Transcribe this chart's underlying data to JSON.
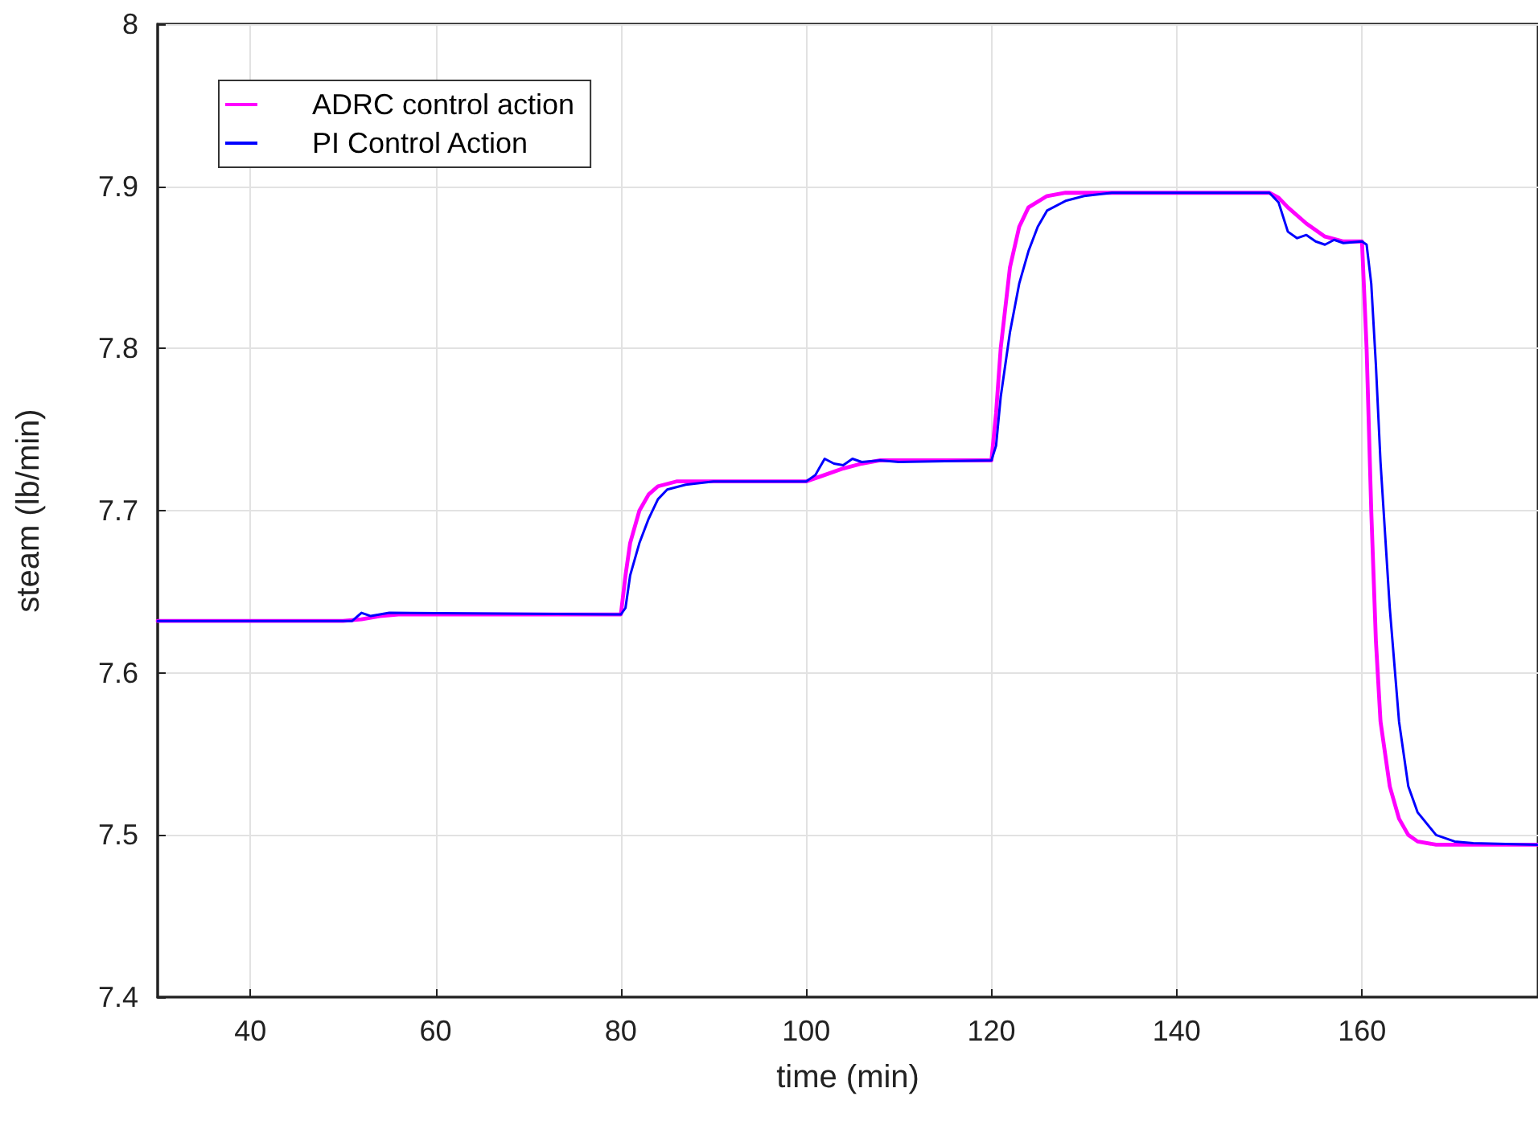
{
  "chart_data": {
    "type": "line",
    "xlabel": "time (min)",
    "ylabel": "steam (lb/min)",
    "xlim": [
      30,
      179
    ],
    "xticks": [
      40,
      60,
      80,
      100,
      120,
      140,
      160
    ],
    "ylim": [
      7.4,
      8
    ],
    "yticks": [
      7.4,
      7.5,
      7.6,
      7.7,
      7.8,
      7.9,
      {
        "value": 8,
        "label": "8"
      }
    ],
    "grid": true,
    "legend": "top left",
    "line_style": "solid",
    "marker": "none",
    "series": [
      {
        "name": "ADRC control action",
        "color": "#ff00ff",
        "x": [
          30,
          50,
          52,
          54,
          56,
          80,
          80.5,
          81,
          82,
          83,
          84,
          86,
          100,
          102,
          104,
          106,
          108,
          120,
          120.5,
          121,
          122,
          123,
          124,
          126,
          128,
          150,
          151,
          152,
          154,
          156,
          158,
          160,
          160.5,
          161,
          161.5,
          162,
          163,
          164,
          165,
          166,
          168,
          179
        ],
        "values": [
          7.632,
          7.632,
          7.633,
          7.635,
          7.636,
          7.636,
          7.66,
          7.68,
          7.7,
          7.71,
          7.715,
          7.718,
          7.718,
          7.722,
          7.726,
          7.729,
          7.731,
          7.731,
          7.76,
          7.8,
          7.85,
          7.875,
          7.887,
          7.894,
          7.896,
          7.896,
          7.893,
          7.887,
          7.877,
          7.869,
          7.866,
          7.866,
          7.8,
          7.7,
          7.62,
          7.57,
          7.53,
          7.51,
          7.5,
          7.496,
          7.494,
          7.494
        ]
      },
      {
        "name": "PI Control Action",
        "color": "#0000ff",
        "x": [
          30,
          51,
          52,
          53,
          54,
          55,
          80,
          80.5,
          81,
          82,
          83,
          84,
          85,
          87,
          90,
          100,
          101,
          102,
          103,
          104,
          105,
          106,
          108,
          110,
          120,
          120.5,
          121,
          122,
          123,
          124,
          125,
          126,
          128,
          130,
          133,
          150,
          151,
          152,
          153,
          154,
          155,
          156,
          157,
          158,
          160,
          160.5,
          161,
          161.5,
          162,
          163,
          164,
          165,
          166,
          168,
          170,
          172,
          179
        ],
        "values": [
          7.632,
          7.632,
          7.637,
          7.635,
          7.636,
          7.637,
          7.636,
          7.64,
          7.66,
          7.68,
          7.695,
          7.707,
          7.713,
          7.716,
          7.718,
          7.718,
          7.722,
          7.732,
          7.729,
          7.728,
          7.732,
          7.73,
          7.731,
          7.73,
          7.731,
          7.74,
          7.77,
          7.81,
          7.84,
          7.86,
          7.875,
          7.885,
          7.891,
          7.894,
          7.896,
          7.896,
          7.89,
          7.872,
          7.868,
          7.87,
          7.866,
          7.864,
          7.867,
          7.865,
          7.866,
          7.864,
          7.84,
          7.79,
          7.73,
          7.64,
          7.57,
          7.53,
          7.514,
          7.5,
          7.496,
          7.495,
          7.494
        ]
      }
    ]
  }
}
